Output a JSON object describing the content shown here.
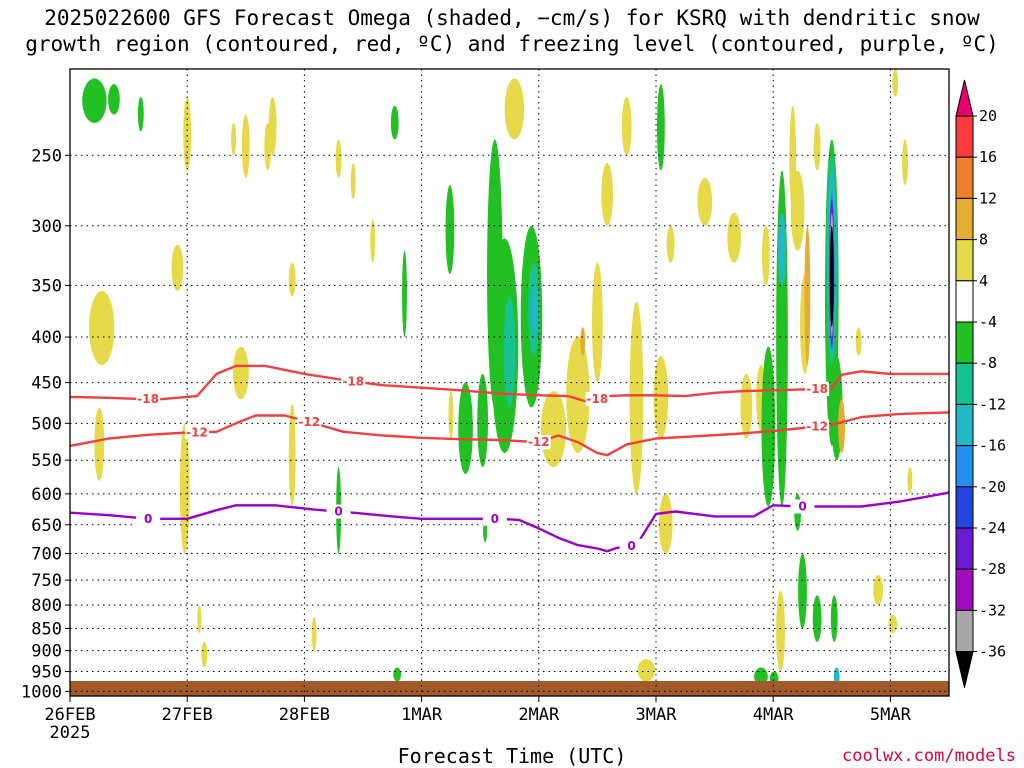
{
  "title": {
    "line1": "2025022600 GFS Forecast Omega (shaded, −cm/s) for KSRQ with dendritic snow",
    "line2": "growth region (contoured, red, ºC) and freezing level (contoured, purple, ºC)"
  },
  "xaxis_label": "Forecast Time (UTC)",
  "credit": "coolwx.com/models",
  "chart_data": {
    "type": "heatmap",
    "title": "2025022600 GFS Forecast Omega (shaded, −cm/s) for KSRQ with dendritic snow growth region (contoured, red, ºC) and freezing level (contoured, purple, ºC)",
    "xlabel": "Forecast Time (UTC)",
    "ylabel": "",
    "x_ticks": [
      {
        "label": "26FEB",
        "sub": "2025",
        "hours": 0
      },
      {
        "label": "27FEB",
        "sub": "",
        "hours": 24
      },
      {
        "label": "28FEB",
        "sub": "",
        "hours": 48
      },
      {
        "label": "1MAR",
        "sub": "",
        "hours": 72
      },
      {
        "label": "2MAR",
        "sub": "",
        "hours": 96
      },
      {
        "label": "3MAR",
        "sub": "",
        "hours": 120
      },
      {
        "label": "4MAR",
        "sub": "",
        "hours": 144
      },
      {
        "label": "5MAR",
        "sub": "",
        "hours": 168
      }
    ],
    "xlim_hours": [
      0,
      180
    ],
    "y_ticks": [
      250,
      300,
      350,
      400,
      450,
      500,
      550,
      600,
      650,
      700,
      750,
      800,
      850,
      900,
      950,
      1000
    ],
    "ylim_hPa": [
      1012,
      200
    ],
    "y_scale": "log-pressure",
    "grid": true,
    "colorbar": {
      "ticks": [
        "20",
        "16",
        "12",
        "8",
        "4",
        "-4",
        "-8",
        "-12",
        "-16",
        "-20",
        "-24",
        "-28",
        "-32",
        "-36"
      ],
      "colors": [
        "#e8006f",
        "#ff3a3a",
        "#f07f2a",
        "#e6ad33",
        "#e6d94a",
        "#ffffff",
        "#22c022",
        "#16c290",
        "#22b8c8",
        "#2290f0",
        "#2244e0",
        "#6a1ad0",
        "#a40ac0",
        "#a8a8a8",
        "#000000"
      ]
    },
    "series": [
      {
        "name": "-18",
        "points": [
          [
            0,
            467
          ],
          [
            8,
            468
          ],
          [
            12,
            469
          ],
          [
            18,
            470
          ],
          [
            26,
            466
          ],
          [
            30,
            440
          ],
          [
            34,
            431
          ],
          [
            40,
            431
          ],
          [
            48,
            440
          ],
          [
            56,
            447
          ],
          [
            64,
            453
          ],
          [
            72,
            456
          ],
          [
            80,
            459
          ],
          [
            88,
            463
          ],
          [
            96,
            465
          ],
          [
            102,
            466
          ],
          [
            106,
            473
          ],
          [
            110,
            466
          ],
          [
            114,
            465
          ],
          [
            120,
            465
          ],
          [
            126,
            466
          ],
          [
            132,
            462
          ],
          [
            138,
            460
          ],
          [
            144,
            459
          ],
          [
            150,
            458
          ],
          [
            156,
            457
          ],
          [
            158,
            441
          ],
          [
            162,
            437
          ],
          [
            168,
            440
          ],
          [
            180,
            440
          ]
        ]
      },
      {
        "name": "-12",
        "points": [
          [
            0,
            530
          ],
          [
            8,
            520
          ],
          [
            16,
            515
          ],
          [
            24,
            512
          ],
          [
            30,
            511
          ],
          [
            34,
            500
          ],
          [
            38,
            490
          ],
          [
            44,
            490
          ],
          [
            50,
            500
          ],
          [
            56,
            511
          ],
          [
            64,
            516
          ],
          [
            72,
            519
          ],
          [
            80,
            521
          ],
          [
            88,
            522
          ],
          [
            96,
            525
          ],
          [
            100,
            516
          ],
          [
            104,
            525
          ],
          [
            108,
            540
          ],
          [
            110,
            543
          ],
          [
            114,
            528
          ],
          [
            120,
            520
          ],
          [
            128,
            517
          ],
          [
            136,
            514
          ],
          [
            144,
            510
          ],
          [
            150,
            506
          ],
          [
            156,
            502
          ],
          [
            162,
            492
          ],
          [
            170,
            488
          ],
          [
            180,
            486
          ]
        ]
      },
      {
        "name": "0",
        "points": [
          [
            0,
            630
          ],
          [
            8,
            634
          ],
          [
            16,
            640
          ],
          [
            24,
            640
          ],
          [
            30,
            626
          ],
          [
            34,
            618
          ],
          [
            42,
            618
          ],
          [
            50,
            625
          ],
          [
            58,
            630
          ],
          [
            66,
            636
          ],
          [
            72,
            640
          ],
          [
            80,
            640
          ],
          [
            88,
            640
          ],
          [
            92,
            642
          ],
          [
            96,
            656
          ],
          [
            100,
            672
          ],
          [
            104,
            685
          ],
          [
            108,
            691
          ],
          [
            110,
            696
          ],
          [
            112,
            690
          ],
          [
            116,
            685
          ],
          [
            120,
            632
          ],
          [
            124,
            628
          ],
          [
            132,
            636
          ],
          [
            140,
            636
          ],
          [
            144,
            618
          ],
          [
            150,
            620
          ],
          [
            156,
            620
          ],
          [
            162,
            620
          ],
          [
            170,
            612
          ],
          [
            180,
            598
          ]
        ]
      }
    ]
  },
  "omega_blobs": [
    {
      "c": "#22c022",
      "x": 5,
      "p": 205,
      "dx": 2.5,
      "p2": 230
    },
    {
      "c": "#22c022",
      "x": 9,
      "p": 208,
      "dx": 1.2,
      "p2": 225
    },
    {
      "c": "#22c022",
      "x": 14.5,
      "p": 215,
      "dx": 0.6,
      "p2": 235
    },
    {
      "c": "#e6d94a",
      "x": 6.5,
      "p": 355,
      "dx": 2.6,
      "p2": 430
    },
    {
      "c": "#e6d94a",
      "x": 6,
      "p": 480,
      "dx": 1,
      "p2": 580
    },
    {
      "c": "#e6d94a",
      "x": 22,
      "p": 315,
      "dx": 1.2,
      "p2": 355
    },
    {
      "c": "#e6d94a",
      "x": 23.5,
      "p": 500,
      "dx": 1,
      "p2": 700
    },
    {
      "c": "#e6d94a",
      "x": 24,
      "p": 215,
      "dx": 0.8,
      "p2": 260
    },
    {
      "c": "#e6d94a",
      "x": 35,
      "p": 410,
      "dx": 1.6,
      "p2": 470
    },
    {
      "c": "#e6d94a",
      "x": 36,
      "p": 225,
      "dx": 0.8,
      "p2": 265
    },
    {
      "c": "#e6d94a",
      "x": 40.5,
      "p": 230,
      "dx": 0.7,
      "p2": 260
    },
    {
      "c": "#e6d94a",
      "x": 41.5,
      "p": 215,
      "dx": 0.8,
      "p2": 250
    },
    {
      "c": "#e6d94a",
      "x": 45.5,
      "p": 475,
      "dx": 0.7,
      "p2": 620
    },
    {
      "c": "#e6d94a",
      "x": 45.5,
      "p": 330,
      "dx": 0.7,
      "p2": 360
    },
    {
      "c": "#e6d94a",
      "x": 55,
      "p": 240,
      "dx": 0.6,
      "p2": 265
    },
    {
      "c": "#e6d94a",
      "x": 58,
      "p": 255,
      "dx": 0.5,
      "p2": 280
    },
    {
      "c": "#22c022",
      "x": 66.5,
      "p": 220,
      "dx": 0.8,
      "p2": 240
    },
    {
      "c": "#22c022",
      "x": 68.5,
      "p": 320,
      "dx": 0.5,
      "p2": 400
    },
    {
      "c": "#e6d94a",
      "x": 62,
      "p": 295,
      "dx": 0.5,
      "p2": 330
    },
    {
      "c": "#22c022",
      "x": 77.8,
      "p": 270,
      "dx": 0.9,
      "p2": 340
    },
    {
      "c": "#22c022",
      "x": 81,
      "p": 450,
      "dx": 1.5,
      "p2": 570
    },
    {
      "c": "#e6d94a",
      "x": 78,
      "p": 460,
      "dx": 0.5,
      "p2": 520
    },
    {
      "c": "#22c022",
      "x": 87,
      "p": 240,
      "dx": 1.6,
      "p2": 480
    },
    {
      "c": "#22c022",
      "x": 89,
      "p": 310,
      "dx": 2.8,
      "p2": 540
    },
    {
      "c": "#16c290",
      "x": 90,
      "p": 360,
      "dx": 1.2,
      "p2": 480
    },
    {
      "c": "#22c022",
      "x": 84.5,
      "p": 440,
      "dx": 1.1,
      "p2": 560
    },
    {
      "c": "#22c022",
      "x": 94.5,
      "p": 300,
      "dx": 2.2,
      "p2": 480
    },
    {
      "c": "#16c290",
      "x": 95,
      "p": 330,
      "dx": 1.2,
      "p2": 420
    },
    {
      "c": "#22b8c8",
      "x": 95.2,
      "p": 350,
      "dx": 0.6,
      "p2": 400
    },
    {
      "c": "#e6d94a",
      "x": 91,
      "p": 205,
      "dx": 2,
      "p2": 240
    },
    {
      "c": "#e6d94a",
      "x": 99,
      "p": 460,
      "dx": 2.6,
      "p2": 560
    },
    {
      "c": "#e6d94a",
      "x": 104,
      "p": 400,
      "dx": 2.4,
      "p2": 540
    },
    {
      "c": "#e6ad33",
      "x": 105,
      "p": 390,
      "dx": 0.5,
      "p2": 420
    },
    {
      "c": "#e6d94a",
      "x": 108,
      "p": 330,
      "dx": 1.1,
      "p2": 450
    },
    {
      "c": "#e6d94a",
      "x": 110,
      "p": 255,
      "dx": 1.2,
      "p2": 300
    },
    {
      "c": "#e6d94a",
      "x": 114,
      "p": 215,
      "dx": 1,
      "p2": 250
    },
    {
      "c": "#e6d94a",
      "x": 116,
      "p": 365,
      "dx": 1.4,
      "p2": 600
    },
    {
      "c": "#e6d94a",
      "x": 121,
      "p": 420,
      "dx": 1.5,
      "p2": 520
    },
    {
      "c": "#e6d94a",
      "x": 122,
      "p": 600,
      "dx": 1.4,
      "p2": 700
    },
    {
      "c": "#e6d94a",
      "x": 118,
      "p": 920,
      "dx": 1.8,
      "p2": 975
    },
    {
      "c": "#22c022",
      "x": 121,
      "p": 208,
      "dx": 0.8,
      "p2": 260
    },
    {
      "c": "#e6d94a",
      "x": 123,
      "p": 300,
      "dx": 0.8,
      "p2": 330
    },
    {
      "c": "#e6d94a",
      "x": 130,
      "p": 265,
      "dx": 1.5,
      "p2": 300
    },
    {
      "c": "#e6d94a",
      "x": 136,
      "p": 290,
      "dx": 1.4,
      "p2": 330
    },
    {
      "c": "#e6d94a",
      "x": 138.5,
      "p": 440,
      "dx": 1.2,
      "p2": 520
    },
    {
      "c": "#e6d94a",
      "x": 141.5,
      "p": 430,
      "dx": 1,
      "p2": 510
    },
    {
      "c": "#e6d94a",
      "x": 142.5,
      "p": 300,
      "dx": 0.8,
      "p2": 350
    },
    {
      "c": "#22c022",
      "x": 143,
      "p": 410,
      "dx": 1.4,
      "p2": 620
    },
    {
      "c": "#22c022",
      "x": 145.8,
      "p": 260,
      "dx": 1.2,
      "p2": 620
    },
    {
      "c": "#22b8c8",
      "x": 145.8,
      "p": 290,
      "dx": 0.8,
      "p2": 350
    },
    {
      "c": "#e6d94a",
      "x": 145.5,
      "p": 770,
      "dx": 0.9,
      "p2": 950
    },
    {
      "c": "#22c022",
      "x": 141.5,
      "p": 940,
      "dx": 1.4,
      "p2": 985
    },
    {
      "c": "#22c022",
      "x": 144.2,
      "p": 950,
      "dx": 0.9,
      "p2": 985
    },
    {
      "c": "#e6d94a",
      "x": 149,
      "p": 260,
      "dx": 1.4,
      "p2": 320
    },
    {
      "c": "#e6d94a",
      "x": 148,
      "p": 220,
      "dx": 0.7,
      "p2": 290
    },
    {
      "c": "#e6d94a",
      "x": 153,
      "p": 230,
      "dx": 0.7,
      "p2": 260
    },
    {
      "c": "#22c022",
      "x": 149,
      "p": 600,
      "dx": 0.7,
      "p2": 660
    },
    {
      "c": "#e6d94a",
      "x": 150.5,
      "p": 340,
      "dx": 1,
      "p2": 440
    },
    {
      "c": "#e6ad33",
      "x": 151,
      "p": 300,
      "dx": 0.6,
      "p2": 430
    },
    {
      "c": "#22c022",
      "x": 150,
      "p": 700,
      "dx": 0.9,
      "p2": 850
    },
    {
      "c": "#22c022",
      "x": 153,
      "p": 780,
      "dx": 0.9,
      "p2": 880
    },
    {
      "c": "#22c022",
      "x": 157,
      "p": 420,
      "dx": 1.2,
      "p2": 550
    },
    {
      "c": "#22c022",
      "x": 156,
      "p": 240,
      "dx": 1.4,
      "p2": 530
    },
    {
      "c": "#16c290",
      "x": 156,
      "p": 250,
      "dx": 1.1,
      "p2": 430
    },
    {
      "c": "#22b8c8",
      "x": 156,
      "p": 260,
      "dx": 0.8,
      "p2": 420
    },
    {
      "c": "#2290f0",
      "x": 156,
      "p": 275,
      "dx": 0.6,
      "p2": 415
    },
    {
      "c": "#6a1ad0",
      "x": 156,
      "p": 280,
      "dx": 0.5,
      "p2": 410
    },
    {
      "c": "#a8a8a8",
      "x": 156,
      "p": 290,
      "dx": 0.4,
      "p2": 400
    },
    {
      "c": "#000000",
      "x": 156,
      "p": 300,
      "dx": 0.3,
      "p2": 390
    },
    {
      "c": "#e6ad33",
      "x": 158,
      "p": 470,
      "dx": 0.7,
      "p2": 540
    },
    {
      "c": "#22c022",
      "x": 156.5,
      "p": 780,
      "dx": 0.7,
      "p2": 880
    },
    {
      "c": "#22b8c8",
      "x": 157,
      "p": 940,
      "dx": 0.6,
      "p2": 985
    },
    {
      "c": "#e6d94a",
      "x": 161.5,
      "p": 390,
      "dx": 0.6,
      "p2": 420
    },
    {
      "c": "#e6d94a",
      "x": 165.5,
      "p": 740,
      "dx": 1,
      "p2": 800
    },
    {
      "c": "#e6d94a",
      "x": 168.5,
      "p": 820,
      "dx": 0.9,
      "p2": 860
    },
    {
      "c": "#e6d94a",
      "x": 171,
      "p": 240,
      "dx": 0.6,
      "p2": 270
    },
    {
      "c": "#e6d94a",
      "x": 172,
      "p": 560,
      "dx": 0.5,
      "p2": 600
    },
    {
      "c": "#e6d94a",
      "x": 169,
      "p": 200,
      "dx": 0.6,
      "p2": 215
    },
    {
      "c": "#22c022",
      "x": 55,
      "p": 560,
      "dx": 0.5,
      "p2": 700
    },
    {
      "c": "#22c022",
      "x": 67,
      "p": 940,
      "dx": 0.8,
      "p2": 975
    },
    {
      "c": "#22c022",
      "x": 85,
      "p": 640,
      "dx": 0.4,
      "p2": 680
    },
    {
      "c": "#e6d94a",
      "x": 50,
      "p": 825,
      "dx": 0.5,
      "p2": 900
    },
    {
      "c": "#e6d94a",
      "x": 33.5,
      "p": 230,
      "dx": 0.5,
      "p2": 250
    },
    {
      "c": "#e6d94a",
      "x": 26.5,
      "p": 800,
      "dx": 0.3,
      "p2": 860
    },
    {
      "c": "#e6d94a",
      "x": 27.5,
      "p": 880,
      "dx": 0.6,
      "p2": 940
    }
  ]
}
